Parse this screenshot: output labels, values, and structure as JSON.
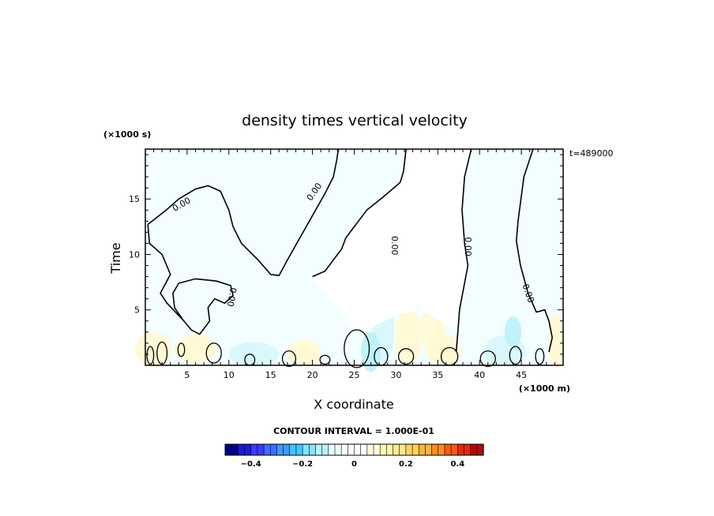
{
  "chart_data": {
    "type": "contour",
    "title": "density times vertical velocity",
    "xlabel": "X coordinate",
    "ylabel": "Time",
    "x_unit": "(×1000 m)",
    "y_unit": "(×1000 s)",
    "time_stamp": "t=489000",
    "xlim": [
      0,
      50
    ],
    "ylim": [
      0,
      19.5
    ],
    "x_ticks": [
      5,
      10,
      15,
      20,
      25,
      30,
      35,
      40,
      45
    ],
    "y_ticks": [
      5,
      10,
      15
    ],
    "x_tick_labels": [
      "5",
      "10",
      "15",
      "20",
      "25",
      "30",
      "35",
      "40",
      "45"
    ],
    "y_tick_labels": [
      "5",
      "10",
      "15"
    ],
    "contour_label": "0.00",
    "contour_interval_text": "CONTOUR INTERVAL = 1.000E-01",
    "colorbar": {
      "min": -0.5,
      "max": 0.5,
      "step": 0.025,
      "ticks": [
        -0.4,
        -0.2,
        0,
        0.2,
        0.4
      ],
      "tick_labels": [
        "−0.4",
        "−0.2",
        "0",
        "0.2",
        "0.4"
      ],
      "colors": [
        "#00008b",
        "#1c1ccf",
        "#3a3aff",
        "#3f6dff",
        "#3d9cff",
        "#3ec7ff",
        "#7fe6ff",
        "#b8f4ff",
        "#e8fdff",
        "#ffffff",
        "#ffffff",
        "#fffce0",
        "#fff6b0",
        "#ffe98a",
        "#ffd35c",
        "#ffb43a",
        "#ff8c1e",
        "#f55b12",
        "#e22b0c",
        "#b50a0a"
      ]
    },
    "zero_contours": [
      [
        [
          0.3,
          12.7
        ],
        [
          2.5,
          14
        ],
        [
          4,
          15
        ],
        [
          6,
          15.9
        ],
        [
          7.5,
          16.2
        ],
        [
          9,
          15.7
        ],
        [
          10,
          14
        ],
        [
          10.5,
          12.5
        ],
        [
          11.5,
          11
        ],
        [
          13.5,
          9.5
        ],
        [
          15,
          8.2
        ],
        [
          16,
          8.1
        ],
        [
          17,
          9.5
        ],
        [
          18.5,
          11.5
        ],
        [
          20,
          13.5
        ],
        [
          21.5,
          15.5
        ],
        [
          22.5,
          17
        ],
        [
          22.9,
          18.5
        ],
        [
          23.1,
          19.5
        ]
      ],
      [
        [
          31.2,
          19.5
        ],
        [
          30.9,
          17.5
        ],
        [
          30.5,
          16.5
        ],
        [
          28.5,
          15.2
        ],
        [
          26.5,
          14
        ],
        [
          25,
          12.5
        ],
        [
          24,
          11.5
        ],
        [
          23.5,
          10.5
        ],
        [
          22.5,
          9.5
        ],
        [
          21.5,
          8.5
        ],
        [
          20,
          8
        ]
      ],
      [
        [
          39,
          19.5
        ],
        [
          38.2,
          17
        ],
        [
          37.9,
          14
        ],
        [
          38.2,
          11
        ],
        [
          38.6,
          9
        ],
        [
          38.1,
          7
        ],
        [
          37.6,
          5
        ],
        [
          37.4,
          3
        ],
        [
          37.2,
          1.2
        ]
      ],
      [
        [
          46.4,
          19.5
        ],
        [
          45.3,
          17
        ],
        [
          44.6,
          13
        ],
        [
          44.4,
          11.2
        ],
        [
          44.9,
          9
        ],
        [
          45.8,
          6.5
        ],
        [
          46.8,
          4.8
        ],
        [
          47.8,
          5
        ],
        [
          48.3,
          4
        ],
        [
          48.7,
          2.5
        ],
        [
          48.3,
          1.2
        ]
      ]
    ]
  }
}
